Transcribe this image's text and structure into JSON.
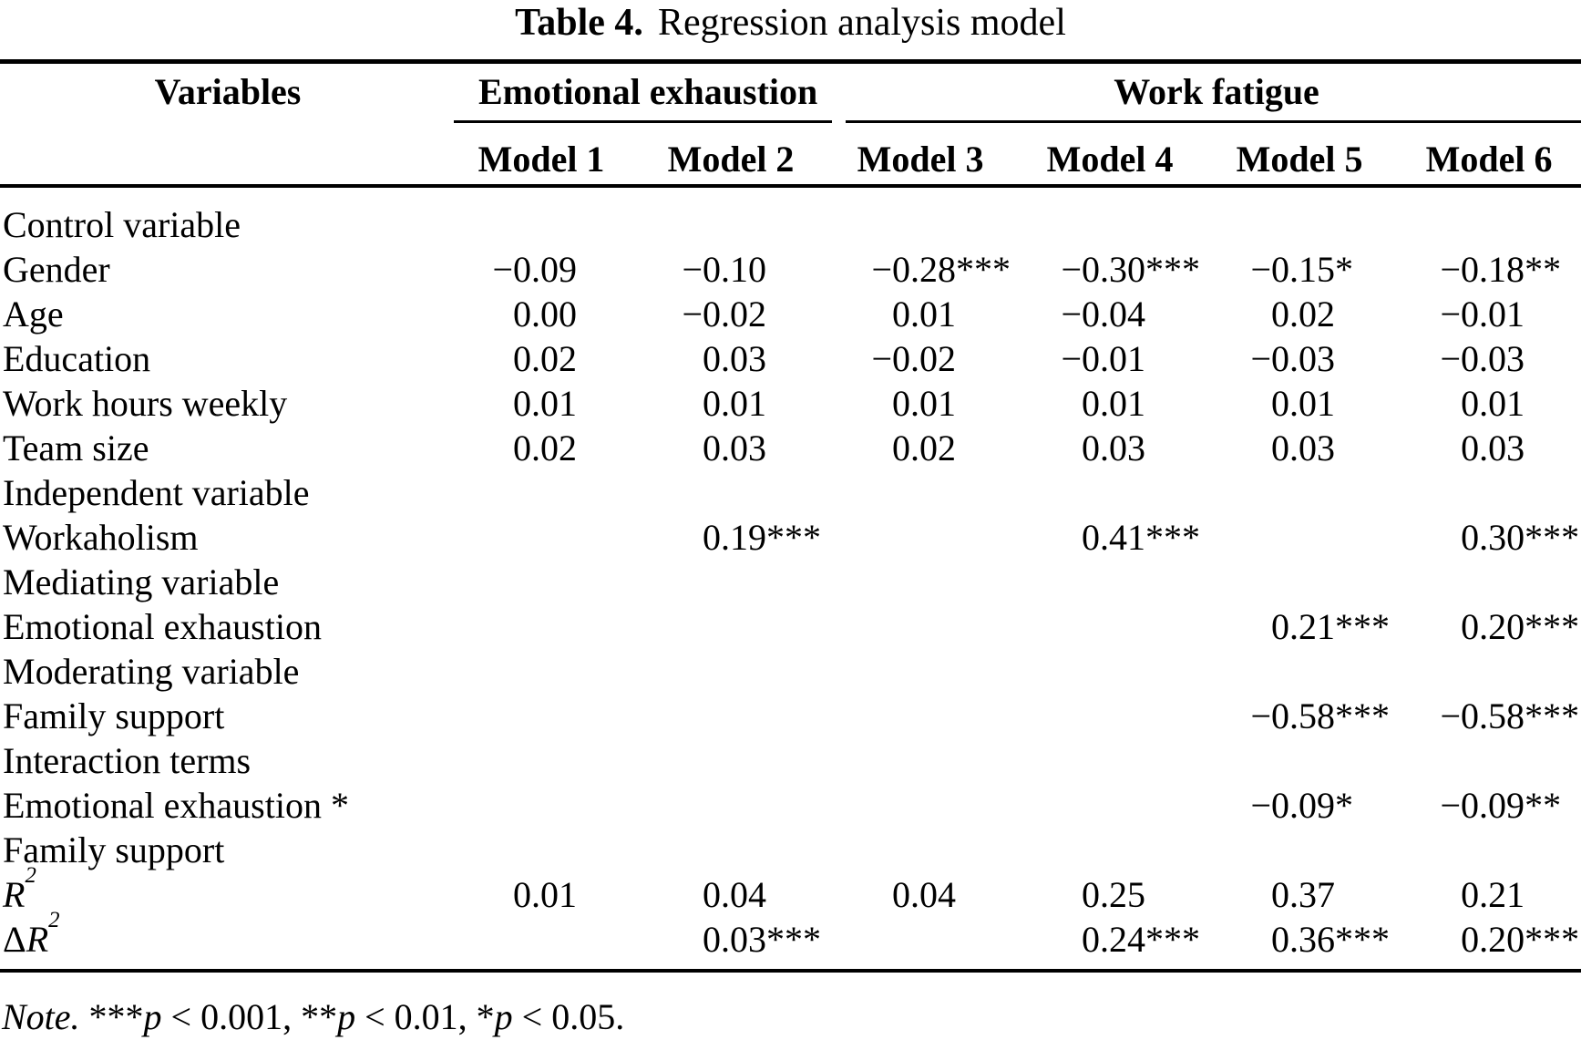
{
  "title": {
    "label": "Table 4.",
    "text": "Regression analysis model"
  },
  "header": {
    "variables": "Variables",
    "groups": [
      {
        "label": "Emotional exhaustion",
        "models": [
          "Model 1",
          "Model 2"
        ]
      },
      {
        "label": "Work fatigue",
        "models": [
          "Model 3",
          "Model 4",
          "Model 5",
          "Model 6"
        ]
      }
    ]
  },
  "table": {
    "rows": [
      {
        "pre": "",
        "label": "Control variable",
        "italic": false,
        "sup": "",
        "cells": [
          {
            "n": "",
            "s": ""
          },
          {
            "n": "",
            "s": ""
          },
          {
            "n": "",
            "s": ""
          },
          {
            "n": "",
            "s": ""
          },
          {
            "n": "",
            "s": ""
          },
          {
            "n": "",
            "s": ""
          }
        ]
      },
      {
        "pre": "",
        "label": "Gender",
        "italic": false,
        "sup": "",
        "cells": [
          {
            "n": "−0.09",
            "s": ""
          },
          {
            "n": "−0.10",
            "s": ""
          },
          {
            "n": "−0.28",
            "s": "***"
          },
          {
            "n": "−0.30",
            "s": "***"
          },
          {
            "n": "−0.15",
            "s": "*"
          },
          {
            "n": "−0.18",
            "s": "**"
          }
        ]
      },
      {
        "pre": "",
        "label": "Age",
        "italic": false,
        "sup": "",
        "cells": [
          {
            "n": "0.00",
            "s": ""
          },
          {
            "n": "−0.02",
            "s": ""
          },
          {
            "n": "0.01",
            "s": ""
          },
          {
            "n": "−0.04",
            "s": ""
          },
          {
            "n": "0.02",
            "s": ""
          },
          {
            "n": "−0.01",
            "s": ""
          }
        ]
      },
      {
        "pre": "",
        "label": "Education",
        "italic": false,
        "sup": "",
        "cells": [
          {
            "n": "0.02",
            "s": ""
          },
          {
            "n": "0.03",
            "s": ""
          },
          {
            "n": "−0.02",
            "s": ""
          },
          {
            "n": "−0.01",
            "s": ""
          },
          {
            "n": "−0.03",
            "s": ""
          },
          {
            "n": "−0.03",
            "s": ""
          }
        ]
      },
      {
        "pre": "",
        "label": "Work hours weekly",
        "italic": false,
        "sup": "",
        "cells": [
          {
            "n": "0.01",
            "s": ""
          },
          {
            "n": "0.01",
            "s": ""
          },
          {
            "n": "0.01",
            "s": ""
          },
          {
            "n": "0.01",
            "s": ""
          },
          {
            "n": "0.01",
            "s": ""
          },
          {
            "n": "0.01",
            "s": ""
          }
        ]
      },
      {
        "pre": "",
        "label": "Team size",
        "italic": false,
        "sup": "",
        "cells": [
          {
            "n": "0.02",
            "s": ""
          },
          {
            "n": "0.03",
            "s": ""
          },
          {
            "n": "0.02",
            "s": ""
          },
          {
            "n": "0.03",
            "s": ""
          },
          {
            "n": "0.03",
            "s": ""
          },
          {
            "n": "0.03",
            "s": ""
          }
        ]
      },
      {
        "pre": "",
        "label": "Independent variable",
        "italic": false,
        "sup": "",
        "cells": [
          {
            "n": "",
            "s": ""
          },
          {
            "n": "",
            "s": ""
          },
          {
            "n": "",
            "s": ""
          },
          {
            "n": "",
            "s": ""
          },
          {
            "n": "",
            "s": ""
          },
          {
            "n": "",
            "s": ""
          }
        ]
      },
      {
        "pre": "",
        "label": "Workaholism",
        "italic": false,
        "sup": "",
        "cells": [
          {
            "n": "",
            "s": ""
          },
          {
            "n": "0.19",
            "s": "***"
          },
          {
            "n": "",
            "s": ""
          },
          {
            "n": "0.41",
            "s": "***"
          },
          {
            "n": "",
            "s": ""
          },
          {
            "n": "0.30",
            "s": "***"
          }
        ]
      },
      {
        "pre": "",
        "label": "Mediating variable",
        "italic": false,
        "sup": "",
        "cells": [
          {
            "n": "",
            "s": ""
          },
          {
            "n": "",
            "s": ""
          },
          {
            "n": "",
            "s": ""
          },
          {
            "n": "",
            "s": ""
          },
          {
            "n": "",
            "s": ""
          },
          {
            "n": "",
            "s": ""
          }
        ]
      },
      {
        "pre": "",
        "label": "Emotional exhaustion",
        "italic": false,
        "sup": "",
        "cells": [
          {
            "n": "",
            "s": ""
          },
          {
            "n": "",
            "s": ""
          },
          {
            "n": "",
            "s": ""
          },
          {
            "n": "",
            "s": ""
          },
          {
            "n": "0.21",
            "s": "***"
          },
          {
            "n": "0.20",
            "s": "***"
          }
        ]
      },
      {
        "pre": "",
        "label": "Moderating variable",
        "italic": false,
        "sup": "",
        "cells": [
          {
            "n": "",
            "s": ""
          },
          {
            "n": "",
            "s": ""
          },
          {
            "n": "",
            "s": ""
          },
          {
            "n": "",
            "s": ""
          },
          {
            "n": "",
            "s": ""
          },
          {
            "n": "",
            "s": ""
          }
        ]
      },
      {
        "pre": "",
        "label": "Family support",
        "italic": false,
        "sup": "",
        "cells": [
          {
            "n": "",
            "s": ""
          },
          {
            "n": "",
            "s": ""
          },
          {
            "n": "",
            "s": ""
          },
          {
            "n": "",
            "s": ""
          },
          {
            "n": "−0.58",
            "s": "***"
          },
          {
            "n": "−0.58",
            "s": "***"
          }
        ]
      },
      {
        "pre": "",
        "label": "Interaction terms",
        "italic": false,
        "sup": "",
        "cells": [
          {
            "n": "",
            "s": ""
          },
          {
            "n": "",
            "s": ""
          },
          {
            "n": "",
            "s": ""
          },
          {
            "n": "",
            "s": ""
          },
          {
            "n": "",
            "s": ""
          },
          {
            "n": "",
            "s": ""
          }
        ]
      },
      {
        "pre": "",
        "label": "Emotional exhaustion *",
        "italic": false,
        "sup": "",
        "cells": [
          {
            "n": "",
            "s": ""
          },
          {
            "n": "",
            "s": ""
          },
          {
            "n": "",
            "s": ""
          },
          {
            "n": "",
            "s": ""
          },
          {
            "n": "−0.09",
            "s": "*"
          },
          {
            "n": "−0.09",
            "s": "**"
          }
        ]
      },
      {
        "pre": "",
        "label": "Family support",
        "italic": false,
        "sup": "",
        "cells": [
          {
            "n": "",
            "s": ""
          },
          {
            "n": "",
            "s": ""
          },
          {
            "n": "",
            "s": ""
          },
          {
            "n": "",
            "s": ""
          },
          {
            "n": "",
            "s": ""
          },
          {
            "n": "",
            "s": ""
          }
        ]
      },
      {
        "pre": "",
        "label": "R",
        "italic": true,
        "sup": "2",
        "cells": [
          {
            "n": "0.01",
            "s": ""
          },
          {
            "n": "0.04",
            "s": ""
          },
          {
            "n": "0.04",
            "s": ""
          },
          {
            "n": "0.25",
            "s": ""
          },
          {
            "n": "0.37",
            "s": ""
          },
          {
            "n": "0.21",
            "s": ""
          }
        ]
      },
      {
        "pre": "Δ",
        "label": "R",
        "italic": true,
        "sup": "2",
        "cells": [
          {
            "n": "",
            "s": ""
          },
          {
            "n": "0.03",
            "s": "***"
          },
          {
            "n": "",
            "s": ""
          },
          {
            "n": "0.24",
            "s": "***"
          },
          {
            "n": "0.36",
            "s": "***"
          },
          {
            "n": "0.20",
            "s": "***"
          }
        ]
      }
    ]
  },
  "note": {
    "segments": [
      {
        "text": "Note.",
        "italic": true
      },
      {
        "text": " ***",
        "italic": false
      },
      {
        "text": "p",
        "italic": true
      },
      {
        "text": " < 0.001, ",
        "italic": false
      },
      {
        "text": "**",
        "italic": false
      },
      {
        "text": "p",
        "italic": true
      },
      {
        "text": " < 0.01, ",
        "italic": false
      },
      {
        "text": "*",
        "italic": false
      },
      {
        "text": "p",
        "italic": true
      },
      {
        "text": " < 0.05.",
        "italic": false
      }
    ]
  }
}
